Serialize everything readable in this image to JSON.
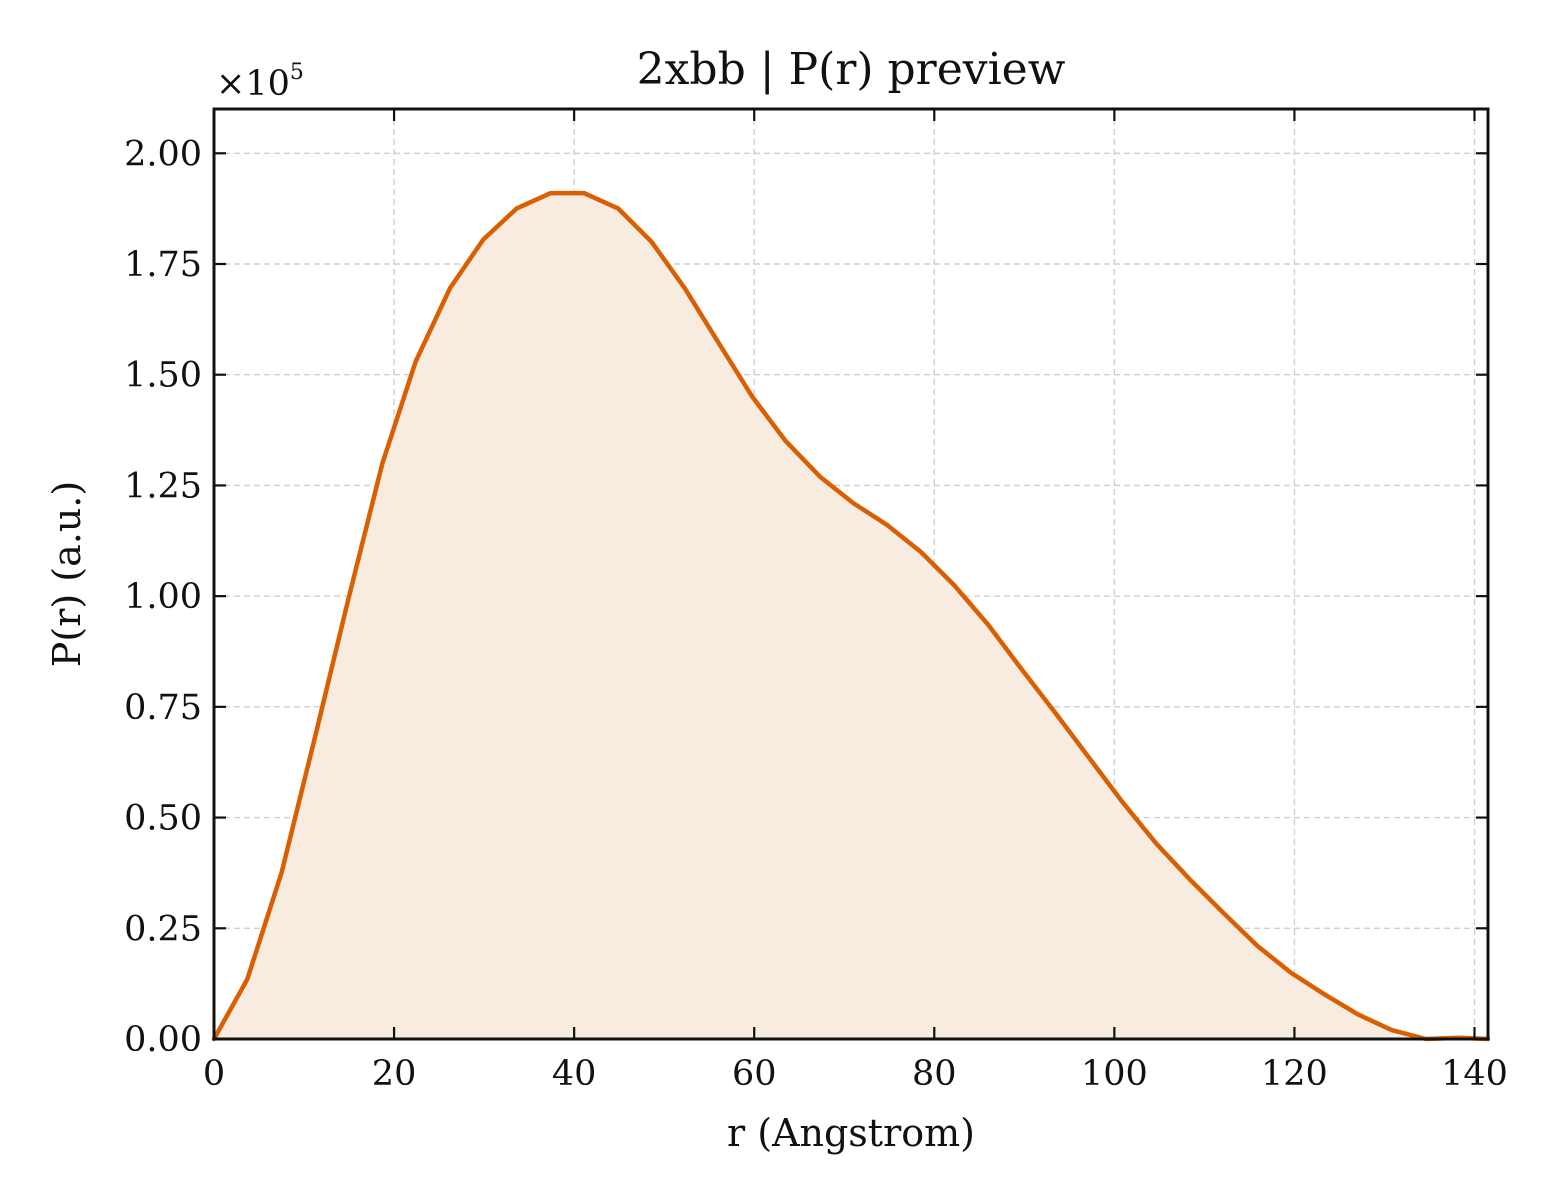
{
  "chart_data": {
    "type": "area",
    "title": "2xbb | P(r) preview",
    "xlabel": "r (Angstrom)",
    "ylabel": "P(r) (a.u.)",
    "y_offset_base": "×10",
    "y_offset_exponent": "5",
    "xlim": [
      0,
      141.5
    ],
    "ylim": [
      0,
      2.1
    ],
    "x_ticks": [
      0,
      20,
      40,
      60,
      80,
      100,
      120,
      140
    ],
    "x_tick_labels": [
      "0",
      "20",
      "40",
      "60",
      "80",
      "100",
      "120",
      "140"
    ],
    "y_ticks": [
      0,
      0.25,
      0.5,
      0.75,
      1.0,
      1.25,
      1.5,
      1.75,
      2.0
    ],
    "y_tick_labels": [
      "0.00",
      "0.25",
      "0.50",
      "0.75",
      "1.00",
      "1.25",
      "1.50",
      "1.75",
      "2.00"
    ],
    "grid": true,
    "line_color": "#d95f02",
    "fill_color": "#f8ebe0",
    "series": [
      {
        "x": [
          0,
          3.7,
          7.5,
          11.2,
          15.0,
          18.7,
          22.4,
          26.2,
          29.9,
          33.6,
          37.4,
          41.1,
          44.9,
          48.6,
          52.3,
          56.1,
          59.8,
          63.5,
          67.3,
          71.0,
          74.8,
          78.5,
          82.2,
          86.0,
          89.7,
          93.5,
          97.2,
          100.9,
          104.7,
          108.4,
          112.1,
          115.9,
          119.6,
          123.4,
          127.1,
          130.8,
          134.6,
          138.3,
          141.5
        ],
        "y": [
          0.0,
          0.135,
          0.375,
          0.68,
          1.0,
          1.3,
          1.53,
          1.695,
          1.805,
          1.875,
          1.91,
          1.91,
          1.875,
          1.8,
          1.695,
          1.57,
          1.45,
          1.35,
          1.27,
          1.21,
          1.16,
          1.1,
          1.025,
          0.935,
          0.835,
          0.735,
          0.635,
          0.535,
          0.44,
          0.36,
          0.285,
          0.21,
          0.15,
          0.1,
          0.055,
          0.02,
          0.0,
          0.003,
          0.0
        ]
      }
    ]
  }
}
